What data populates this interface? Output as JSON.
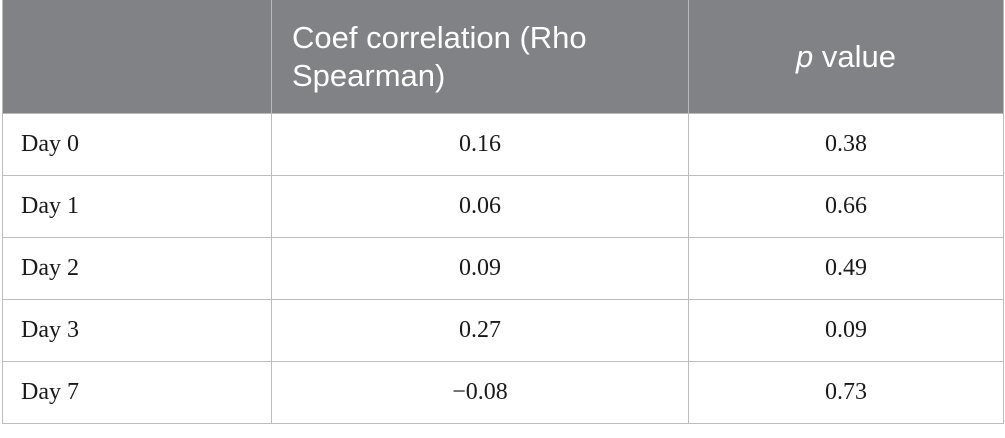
{
  "table": {
    "headers": [
      "",
      "Coef correlation (Rho Spearman)",
      "value"
    ],
    "p_symbol": "p",
    "rows": [
      {
        "label": "Day 0",
        "coef": "0.16",
        "p": "0.38"
      },
      {
        "label": "Day 1",
        "coef": "0.06",
        "p": "0.66"
      },
      {
        "label": "Day 2",
        "coef": "0.09",
        "p": "0.49"
      },
      {
        "label": "Day 3",
        "coef": "0.27",
        "p": "0.09"
      },
      {
        "label": "Day 7",
        "coef": "−0.08",
        "p": "0.73"
      }
    ]
  },
  "colors": {
    "header_bg": "#808285",
    "header_text": "#ffffff",
    "grid": "#bdbdbd"
  }
}
